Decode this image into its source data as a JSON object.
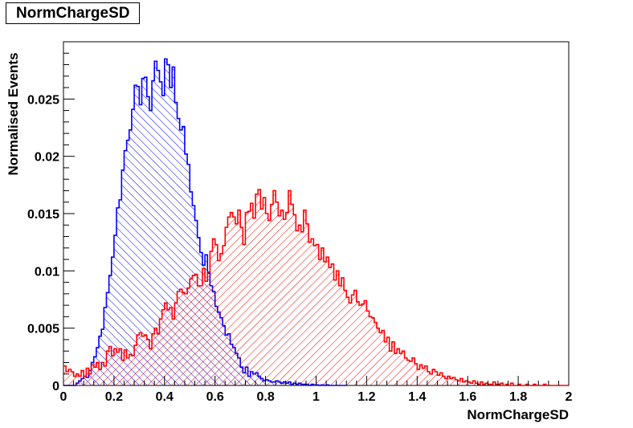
{
  "chart_data": {
    "type": "histogram",
    "title": "NormChargeSD",
    "xlabel": "NormChargeSD",
    "ylabel": "Normalised Events",
    "xlim": [
      0,
      2
    ],
    "ylim": [
      0,
      0.03
    ],
    "x_ticks": [
      "0",
      "0.2",
      "0.4",
      "0.6",
      "0.8",
      "1",
      "1.2",
      "1.4",
      "1.6",
      "1.8",
      "2"
    ],
    "y_ticks": [
      "0",
      "0.005",
      "0.01",
      "0.015",
      "0.02",
      "0.025"
    ],
    "legend": false,
    "grid": false,
    "bin_width": 0.01,
    "series": [
      {
        "color": "#0000ff",
        "fill": "hatch-forward",
        "bins": [
          [
            0.0,
            0
          ],
          [
            0.02,
            0
          ],
          [
            0.04,
            0
          ],
          [
            0.05,
            0.0002
          ],
          [
            0.06,
            0.0004
          ],
          [
            0.07,
            0.0006
          ],
          [
            0.08,
            0.0008
          ],
          [
            0.09,
            0.0007
          ],
          [
            0.1,
            0.0013
          ],
          [
            0.11,
            0.002
          ],
          [
            0.12,
            0.0025
          ],
          [
            0.13,
            0.0033
          ],
          [
            0.14,
            0.0043
          ],
          [
            0.15,
            0.0049
          ],
          [
            0.16,
            0.0068
          ],
          [
            0.17,
            0.0081
          ],
          [
            0.18,
            0.0096
          ],
          [
            0.19,
            0.0112
          ],
          [
            0.2,
            0.0131
          ],
          [
            0.21,
            0.0155
          ],
          [
            0.22,
            0.0162
          ],
          [
            0.23,
            0.0188
          ],
          [
            0.24,
            0.0205
          ],
          [
            0.25,
            0.0214
          ],
          [
            0.26,
            0.0223
          ],
          [
            0.27,
            0.0241
          ],
          [
            0.28,
            0.0262
          ],
          [
            0.29,
            0.0261
          ],
          [
            0.3,
            0.0245
          ],
          [
            0.31,
            0.0268
          ],
          [
            0.32,
            0.0269
          ],
          [
            0.33,
            0.0252
          ],
          [
            0.34,
            0.024
          ],
          [
            0.35,
            0.0266
          ],
          [
            0.36,
            0.0283
          ],
          [
            0.37,
            0.0275
          ],
          [
            0.38,
            0.0265
          ],
          [
            0.39,
            0.0253
          ],
          [
            0.4,
            0.0285
          ],
          [
            0.41,
            0.028
          ],
          [
            0.42,
            0.026
          ],
          [
            0.43,
            0.0278
          ],
          [
            0.44,
            0.0247
          ],
          [
            0.45,
            0.0233
          ],
          [
            0.46,
            0.0223
          ],
          [
            0.47,
            0.0226
          ],
          [
            0.48,
            0.0202
          ],
          [
            0.49,
            0.0193
          ],
          [
            0.5,
            0.0169
          ],
          [
            0.51,
            0.0157
          ],
          [
            0.52,
            0.0144
          ],
          [
            0.53,
            0.0129
          ],
          [
            0.54,
            0.0116
          ],
          [
            0.55,
            0.0105
          ],
          [
            0.56,
            0.0114
          ],
          [
            0.57,
            0.0098
          ],
          [
            0.58,
            0.0087
          ],
          [
            0.59,
            0.0082
          ],
          [
            0.6,
            0.0069
          ],
          [
            0.61,
            0.0064
          ],
          [
            0.62,
            0.0059
          ],
          [
            0.63,
            0.0052
          ],
          [
            0.64,
            0.0044
          ],
          [
            0.65,
            0.0045
          ],
          [
            0.66,
            0.0036
          ],
          [
            0.67,
            0.0033
          ],
          [
            0.68,
            0.0028
          ],
          [
            0.69,
            0.0024
          ],
          [
            0.7,
            0.0016
          ],
          [
            0.71,
            0.0011
          ],
          [
            0.72,
            0.0016
          ],
          [
            0.73,
            0.0008
          ],
          [
            0.74,
            0.0012
          ],
          [
            0.75,
            0.001
          ],
          [
            0.76,
            0.0011
          ],
          [
            0.77,
            0.0008
          ],
          [
            0.78,
            0.0006
          ],
          [
            0.79,
            0.0004
          ],
          [
            0.8,
            0.0005
          ],
          [
            0.81,
            0.0004
          ],
          [
            0.82,
            0.0003
          ],
          [
            0.83,
            0.0003
          ],
          [
            0.84,
            0.0004
          ],
          [
            0.85,
            0.0003
          ],
          [
            0.86,
            0.0002
          ],
          [
            0.87,
            0.0003
          ],
          [
            0.88,
            0.0002
          ],
          [
            0.89,
            0.0003
          ],
          [
            0.9,
            0.0001
          ],
          [
            0.91,
            0.0002
          ],
          [
            0.92,
            0.0001
          ],
          [
            0.93,
            0.0002
          ],
          [
            0.94,
            0.0001
          ],
          [
            0.95,
            0.0001
          ],
          [
            0.96,
            0.0001
          ],
          [
            0.97,
            0
          ],
          [
            0.98,
            0.0001
          ],
          [
            0.99,
            5e-05
          ],
          [
            1.0,
            5e-05
          ],
          [
            1.01,
            0
          ],
          [
            1.02,
            5e-05
          ],
          [
            1.03,
            0
          ],
          [
            1.04,
            5e-05
          ],
          [
            1.05,
            0
          ],
          [
            1.06,
            0
          ],
          [
            1.07,
            0
          ],
          [
            1.08,
            0
          ],
          [
            1.09,
            0
          ],
          [
            1.1,
            0
          ],
          [
            1.11,
            0
          ]
        ]
      },
      {
        "color": "#ff0000",
        "fill": "hatch-backward",
        "bins": [
          [
            0.0,
            0.0017
          ],
          [
            0.01,
            0.0012
          ],
          [
            0.02,
            0.0014
          ],
          [
            0.03,
            0.0012
          ],
          [
            0.04,
            0.0008
          ],
          [
            0.05,
            0.001
          ],
          [
            0.06,
            0.0008
          ],
          [
            0.07,
            0.0013
          ],
          [
            0.08,
            0.0008
          ],
          [
            0.09,
            0.0015
          ],
          [
            0.1,
            0.001
          ],
          [
            0.11,
            0.0018
          ],
          [
            0.12,
            0.0016
          ],
          [
            0.13,
            0.002
          ],
          [
            0.14,
            0.0014
          ],
          [
            0.15,
            0.002
          ],
          [
            0.16,
            0.0017
          ],
          [
            0.17,
            0.003
          ],
          [
            0.18,
            0.0034
          ],
          [
            0.19,
            0.0026
          ],
          [
            0.2,
            0.0032
          ],
          [
            0.21,
            0.0029
          ],
          [
            0.22,
            0.0032
          ],
          [
            0.23,
            0.0022
          ],
          [
            0.24,
            0.0031
          ],
          [
            0.25,
            0.0024
          ],
          [
            0.26,
            0.0027
          ],
          [
            0.27,
            0.0026
          ],
          [
            0.28,
            0.0035
          ],
          [
            0.29,
            0.0044
          ],
          [
            0.3,
            0.0046
          ],
          [
            0.31,
            0.0043
          ],
          [
            0.32,
            0.0044
          ],
          [
            0.33,
            0.004
          ],
          [
            0.34,
            0.0032
          ],
          [
            0.35,
            0.0045
          ],
          [
            0.36,
            0.005
          ],
          [
            0.37,
            0.0045
          ],
          [
            0.38,
            0.0058
          ],
          [
            0.39,
            0.0066
          ],
          [
            0.4,
            0.0072
          ],
          [
            0.41,
            0.0066
          ],
          [
            0.42,
            0.0068
          ],
          [
            0.43,
            0.0058
          ],
          [
            0.44,
            0.0072
          ],
          [
            0.45,
            0.0082
          ],
          [
            0.46,
            0.0084
          ],
          [
            0.47,
            0.0081
          ],
          [
            0.48,
            0.008
          ],
          [
            0.49,
            0.0085
          ],
          [
            0.5,
            0.0093
          ],
          [
            0.51,
            0.0096
          ],
          [
            0.52,
            0.0097
          ],
          [
            0.53,
            0.0087
          ],
          [
            0.54,
            0.0087
          ],
          [
            0.55,
            0.0102
          ],
          [
            0.56,
            0.0091
          ],
          [
            0.57,
            0.0099
          ],
          [
            0.58,
            0.0117
          ],
          [
            0.59,
            0.0128
          ],
          [
            0.6,
            0.0123
          ],
          [
            0.61,
            0.0109
          ],
          [
            0.62,
            0.0115
          ],
          [
            0.63,
            0.0122
          ],
          [
            0.64,
            0.0138
          ],
          [
            0.65,
            0.0147
          ],
          [
            0.66,
            0.0151
          ],
          [
            0.67,
            0.0147
          ],
          [
            0.68,
            0.0141
          ],
          [
            0.69,
            0.0153
          ],
          [
            0.7,
            0.0138
          ],
          [
            0.71,
            0.0123
          ],
          [
            0.72,
            0.0151
          ],
          [
            0.73,
            0.0152
          ],
          [
            0.74,
            0.0159
          ],
          [
            0.75,
            0.0146
          ],
          [
            0.76,
            0.0167
          ],
          [
            0.77,
            0.0171
          ],
          [
            0.78,
            0.0154
          ],
          [
            0.79,
            0.0164
          ],
          [
            0.8,
            0.015
          ],
          [
            0.81,
            0.0144
          ],
          [
            0.82,
            0.0158
          ],
          [
            0.83,
            0.017
          ],
          [
            0.84,
            0.016
          ],
          [
            0.85,
            0.0148
          ],
          [
            0.86,
            0.0153
          ],
          [
            0.87,
            0.0145
          ],
          [
            0.88,
            0.0151
          ],
          [
            0.89,
            0.017
          ],
          [
            0.9,
            0.0158
          ],
          [
            0.91,
            0.0149
          ],
          [
            0.92,
            0.0135
          ],
          [
            0.93,
            0.014
          ],
          [
            0.94,
            0.0134
          ],
          [
            0.95,
            0.0153
          ],
          [
            0.96,
            0.0141
          ],
          [
            0.97,
            0.0125
          ],
          [
            0.98,
            0.0128
          ],
          [
            0.99,
            0.0122
          ],
          [
            1.0,
            0.0123
          ],
          [
            1.01,
            0.011
          ],
          [
            1.02,
            0.012
          ],
          [
            1.03,
            0.0108
          ],
          [
            1.04,
            0.0112
          ],
          [
            1.05,
            0.0103
          ],
          [
            1.06,
            0.0106
          ],
          [
            1.07,
            0.0092
          ],
          [
            1.08,
            0.01
          ],
          [
            1.09,
            0.0087
          ],
          [
            1.1,
            0.0094
          ],
          [
            1.11,
            0.0083
          ],
          [
            1.12,
            0.0077
          ],
          [
            1.13,
            0.0072
          ],
          [
            1.14,
            0.0079
          ],
          [
            1.15,
            0.0083
          ],
          [
            1.16,
            0.0073
          ],
          [
            1.17,
            0.007
          ],
          [
            1.18,
            0.0071
          ],
          [
            1.19,
            0.0074
          ],
          [
            1.2,
            0.0065
          ],
          [
            1.21,
            0.006
          ],
          [
            1.22,
            0.0059
          ],
          [
            1.23,
            0.0055
          ],
          [
            1.24,
            0.005
          ],
          [
            1.25,
            0.0046
          ],
          [
            1.26,
            0.0048
          ],
          [
            1.27,
            0.0038
          ],
          [
            1.28,
            0.0042
          ],
          [
            1.29,
            0.003
          ],
          [
            1.3,
            0.0038
          ],
          [
            1.31,
            0.0028
          ],
          [
            1.32,
            0.0032
          ],
          [
            1.33,
            0.0028
          ],
          [
            1.34,
            0.003
          ],
          [
            1.35,
            0.0024
          ],
          [
            1.36,
            0.0022
          ],
          [
            1.37,
            0.0021
          ],
          [
            1.38,
            0.0024
          ],
          [
            1.39,
            0.0019
          ],
          [
            1.4,
            0.0014
          ],
          [
            1.41,
            0.0018
          ],
          [
            1.42,
            0.0015
          ],
          [
            1.43,
            0.0017
          ],
          [
            1.44,
            0.0012
          ],
          [
            1.45,
            0.001
          ],
          [
            1.46,
            0.0014
          ],
          [
            1.47,
            0.0012
          ],
          [
            1.48,
            0.0009
          ],
          [
            1.49,
            0.0011
          ],
          [
            1.5,
            0.0008
          ],
          [
            1.51,
            0.0006
          ],
          [
            1.52,
            0.0008
          ],
          [
            1.53,
            0.0006
          ],
          [
            1.54,
            0.0007
          ],
          [
            1.55,
            0.0005
          ],
          [
            1.56,
            0.0004
          ],
          [
            1.57,
            0.0006
          ],
          [
            1.58,
            0.0003
          ],
          [
            1.59,
            0.0004
          ],
          [
            1.6,
            0.0003
          ],
          [
            1.61,
            0.0002
          ],
          [
            1.62,
            0.0004
          ],
          [
            1.63,
            0.0002
          ],
          [
            1.64,
            0.0001
          ],
          [
            1.65,
            0.0003
          ],
          [
            1.66,
            0.0001
          ],
          [
            1.67,
            0.0002
          ],
          [
            1.68,
            0.0001
          ],
          [
            1.69,
            0.0001
          ],
          [
            1.7,
            0.0003
          ],
          [
            1.71,
            0.0001
          ],
          [
            1.72,
            0.0001
          ],
          [
            1.73,
            0.0002
          ],
          [
            1.74,
            0
          ],
          [
            1.75,
            0.0001
          ],
          [
            1.76,
            0
          ],
          [
            1.77,
            0.0002
          ],
          [
            1.78,
            0
          ],
          [
            1.79,
            0
          ],
          [
            1.8,
            0.0001
          ],
          [
            1.81,
            0
          ],
          [
            1.82,
            0
          ],
          [
            1.83,
            0.0001
          ],
          [
            1.84,
            0
          ],
          [
            1.85,
            0
          ],
          [
            1.86,
            0.0001
          ],
          [
            1.87,
            0
          ],
          [
            1.88,
            0
          ],
          [
            1.89,
            0
          ],
          [
            1.9,
            0.0001
          ],
          [
            1.91,
            0
          ],
          [
            1.92,
            0
          ],
          [
            1.93,
            0
          ],
          [
            1.94,
            0
          ],
          [
            1.95,
            0
          ],
          [
            1.96,
            0
          ],
          [
            1.97,
            0
          ],
          [
            1.98,
            0
          ],
          [
            1.99,
            0
          ]
        ]
      }
    ]
  }
}
